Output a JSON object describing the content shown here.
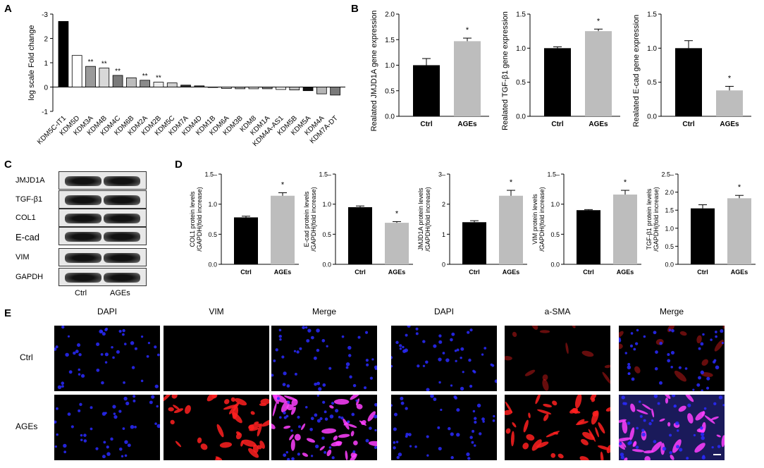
{
  "panels": {
    "A": "A",
    "B": "B",
    "C": "C",
    "D": "D",
    "E": "E"
  },
  "chart_data": [
    {
      "id": "A",
      "type": "bar",
      "ylabel": "log scale  Fold change",
      "ylim": [
        -1,
        3
      ],
      "yticks": [
        "-3",
        "2",
        "1",
        "0",
        "-1"
      ],
      "categories": [
        "KDM5C-IT1",
        "KDM5D",
        "KDM3A",
        "KDM4B",
        "KDM4C",
        "KDM6B",
        "KDM2A",
        "KDM2B",
        "KDM5C",
        "KDM7A",
        "KDM4D",
        "KDM1B",
        "KDM6A",
        "KDM3B",
        "KDM8",
        "KDM1A",
        "KDM4A-AS1",
        "KDM5B",
        "KDM5A",
        "KDM4A",
        "KDM7A-DT"
      ],
      "values": [
        2.7,
        1.3,
        0.85,
        0.78,
        0.48,
        0.38,
        0.28,
        0.2,
        0.17,
        0.08,
        0.05,
        0.0,
        -0.06,
        -0.07,
        -0.07,
        -0.07,
        -0.1,
        -0.12,
        -0.15,
        -0.28,
        -0.33
      ],
      "annotations": [
        "",
        "",
        "**",
        "**",
        "**",
        "",
        "**",
        "**",
        "",
        "",
        "",
        "",
        "",
        "",
        "",
        "",
        "",
        "",
        "",
        "",
        ""
      ]
    },
    {
      "id": "B1",
      "type": "bar",
      "ylabel": "Realated JMJD1A gene expression",
      "ylim": [
        0,
        2
      ],
      "yticks": [
        "0.0",
        "0.5",
        "1.0",
        "1.5",
        "2.0"
      ],
      "categories": [
        "Ctrl",
        "AGEs"
      ],
      "values": [
        1.0,
        1.47
      ],
      "errors": [
        0.13,
        0.06
      ],
      "sig": [
        "",
        "*"
      ]
    },
    {
      "id": "B2",
      "type": "bar",
      "ylabel": "Realated TGF-β1 gene expression",
      "ylim": [
        0,
        1.5
      ],
      "yticks": [
        "0.0",
        "0.5",
        "1.0",
        "1.5"
      ],
      "categories": [
        "Ctrl",
        "AGEs"
      ],
      "values": [
        1.0,
        1.25
      ],
      "errors": [
        0.02,
        0.03
      ],
      "sig": [
        "",
        "*"
      ]
    },
    {
      "id": "B3",
      "type": "bar",
      "ylabel": "Realated E-cad gene expression",
      "ylim": [
        0,
        1.5
      ],
      "yticks": [
        "0.0",
        "0.5",
        "1.0",
        "1.5"
      ],
      "categories": [
        "Ctrl",
        "AGEs"
      ],
      "values": [
        1.0,
        0.38
      ],
      "errors": [
        0.11,
        0.06
      ],
      "sig": [
        "",
        "*"
      ]
    },
    {
      "id": "D1",
      "type": "bar",
      "ylabel": "COL1 protein levels /GAPDH(fold increase)",
      "ylim": [
        0,
        1.5
      ],
      "yticks": [
        "0.0",
        "0.5",
        "1.0",
        "1.5–"
      ],
      "categories": [
        "Ctrl",
        "AGEs"
      ],
      "values": [
        0.78,
        1.14
      ],
      "errors": [
        0.02,
        0.05
      ],
      "sig": [
        "",
        "*"
      ]
    },
    {
      "id": "D2",
      "type": "bar",
      "ylabel": "E-cad protein levels /GAPDH(fold increase)",
      "ylim": [
        0,
        1.5
      ],
      "yticks": [
        "0.0",
        "0.5",
        "1.0",
        "1.5–"
      ],
      "categories": [
        "Ctrl",
        "AGEs"
      ],
      "values": [
        0.95,
        0.69
      ],
      "errors": [
        0.02,
        0.02
      ],
      "sig": [
        "",
        "*"
      ]
    },
    {
      "id": "D3",
      "type": "bar",
      "ylabel": "JMJD1A protein levels /GAPDH(fold increase)",
      "ylim": [
        0,
        3
      ],
      "yticks": [
        "0",
        "1",
        "2",
        "3–"
      ],
      "categories": [
        "Ctrl",
        "AGEs"
      ],
      "values": [
        1.4,
        2.28
      ],
      "errors": [
        0.05,
        0.18
      ],
      "sig": [
        "",
        "*"
      ]
    },
    {
      "id": "D4",
      "type": "bar",
      "ylabel": "VIM protein levels /GAPDH(fold increase)",
      "ylim": [
        0,
        1.5
      ],
      "yticks": [
        "0.0",
        "0.5",
        "1.0",
        "1.5–"
      ],
      "categories": [
        "Ctrl",
        "AGEs"
      ],
      "values": [
        0.9,
        1.16
      ],
      "errors": [
        0.01,
        0.07
      ],
      "sig": [
        "",
        "*"
      ]
    },
    {
      "id": "D5",
      "type": "bar",
      "ylabel": "TGF-β1 protein levels /GAPDH(fold increase)",
      "ylim": [
        0,
        2.5
      ],
      "yticks": [
        "0.0",
        "0.5",
        "1.0",
        "1.5",
        "2.0",
        "2.5–"
      ],
      "categories": [
        "Ctrl",
        "AGEs"
      ],
      "values": [
        1.55,
        1.83
      ],
      "errors": [
        0.1,
        0.08
      ],
      "sig": [
        "",
        "*"
      ]
    }
  ],
  "blot": {
    "rows": [
      "JMJD1A",
      "TGF-β1",
      "COL1",
      "E-cad",
      "VIM",
      "GAPDH"
    ],
    "lanes": [
      "Ctrl",
      "AGEs"
    ]
  },
  "if": {
    "columns": [
      "DAPI",
      "VIM",
      "Merge",
      "DAPI",
      "a-SMA",
      "Merge"
    ],
    "rows": [
      "Ctrl",
      "AGEs"
    ]
  },
  "colors": {
    "ctrl": "#000000",
    "ages": "#bdbdbd",
    "dapi": "#2a2aff",
    "red": "#ff2020",
    "magenta": "#ff40ff"
  }
}
